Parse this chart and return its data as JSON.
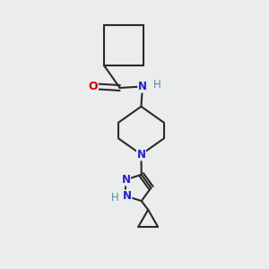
{
  "bg_color": "#eaeced",
  "bond_color": "#2a2a2a",
  "n_color": "#2222cc",
  "o_color": "#cc0000",
  "nh_color": "#5a9090",
  "font_size": 8.5,
  "line_width": 1.5,
  "figsize": [
    3.0,
    3.0
  ],
  "dpi": 100,
  "xlim": [
    0,
    10
  ],
  "ylim": [
    0,
    10
  ]
}
